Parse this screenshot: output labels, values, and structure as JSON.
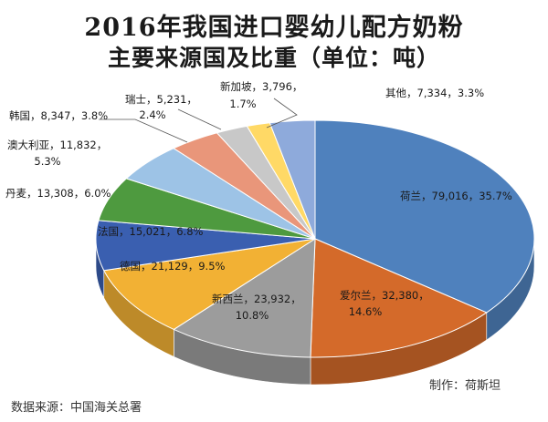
{
  "title": "2016年我国进口婴幼儿配方奶粉",
  "subtitle": "主要来源国及比重（单位：吨）",
  "source_text": "数据来源：中国海关总署",
  "maker_text": "制作：荷斯坦",
  "chart_data": {
    "type": "pie",
    "title": "2016年我国进口婴幼儿配方奶粉 主要来源国及比重（单位：吨）",
    "unit": "吨",
    "slices": [
      {
        "name": "荷兰",
        "value": 79016,
        "value_text": "79,016",
        "percent": "35.7%",
        "color": "#4f81bd"
      },
      {
        "name": "爱尔兰",
        "value": 32380,
        "value_text": "32,380",
        "percent": "14.6%",
        "color": "#d46a2a"
      },
      {
        "name": "新西兰",
        "value": 23932,
        "value_text": "23,932",
        "percent": "10.8%",
        "color": "#9c9c9c"
      },
      {
        "name": "德国",
        "value": 21129,
        "value_text": "21,129",
        "percent": "9.5%",
        "color": "#f2b134"
      },
      {
        "name": "法国",
        "value": 15021,
        "value_text": "15,021",
        "percent": "6.8%",
        "color": "#3a5fb0"
      },
      {
        "name": "丹麦",
        "value": 13308,
        "value_text": "13,308",
        "percent": "6.0%",
        "color": "#4e9a3f"
      },
      {
        "name": "澳大利亚",
        "value": 11832,
        "value_text": "11,832",
        "percent": "5.3%",
        "color": "#9dc3e6"
      },
      {
        "name": "韩国",
        "value": 8347,
        "value_text": "8,347",
        "percent": "3.8%",
        "color": "#e9967a"
      },
      {
        "name": "瑞士",
        "value": 5231,
        "value_text": "5,231",
        "percent": "2.4%",
        "color": "#c8c8c8"
      },
      {
        "name": "新加坡",
        "value": 3796,
        "value_text": "3,796",
        "percent": "1.7%",
        "color": "#ffd966"
      },
      {
        "name": "其他",
        "value": 7334,
        "value_text": "7,334",
        "percent": "3.3%",
        "color": "#8eaadb"
      }
    ]
  }
}
